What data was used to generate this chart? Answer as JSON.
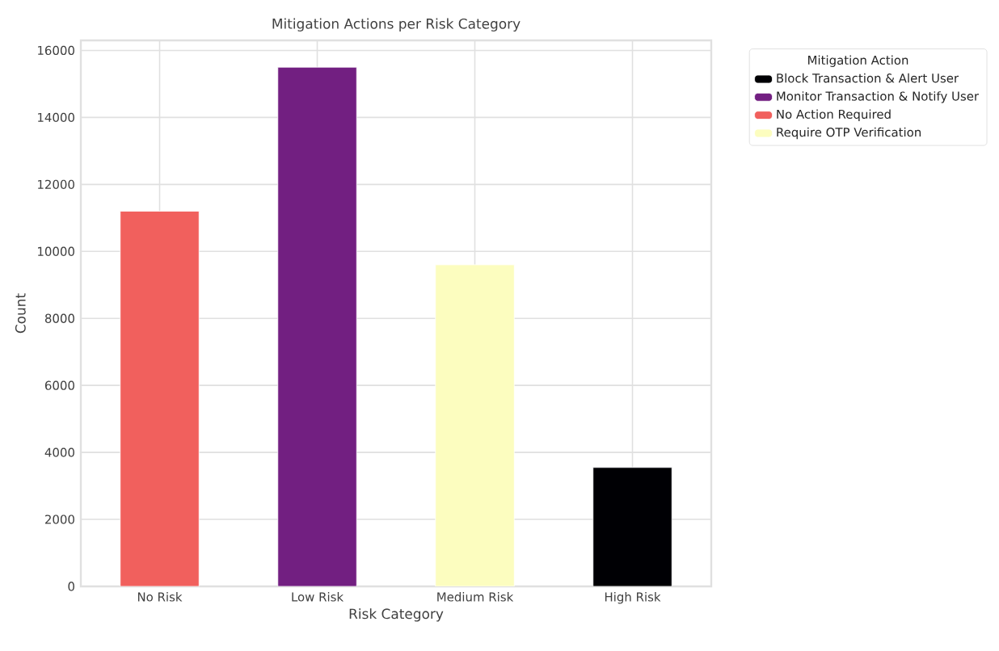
{
  "chart_data": {
    "type": "bar",
    "title": "Mitigation Actions per Risk Category",
    "xlabel": "Risk Category",
    "ylabel": "Count",
    "legend_title": "Mitigation Action",
    "categories": [
      "No Risk",
      "Low Risk",
      "Medium Risk",
      "High Risk"
    ],
    "stacked": true,
    "series": [
      {
        "name": "Block Transaction & Alert User",
        "color": "#000004",
        "values": [
          0,
          0,
          0,
          3550
        ]
      },
      {
        "name": "Monitor Transaction & Notify User",
        "color": "#721f81",
        "values": [
          0,
          15500,
          0,
          0
        ]
      },
      {
        "name": "No Action Required",
        "color": "#f1605d",
        "values": [
          11200,
          0,
          0,
          0
        ]
      },
      {
        "name": "Require OTP Verification",
        "color": "#fcfdbf",
        "values": [
          0,
          0,
          9600,
          0
        ]
      }
    ],
    "ylim": [
      0,
      16300
    ],
    "yticks": [
      0,
      2000,
      4000,
      6000,
      8000,
      10000,
      12000,
      14000,
      16000
    ],
    "grid": true,
    "legend": "top right"
  }
}
